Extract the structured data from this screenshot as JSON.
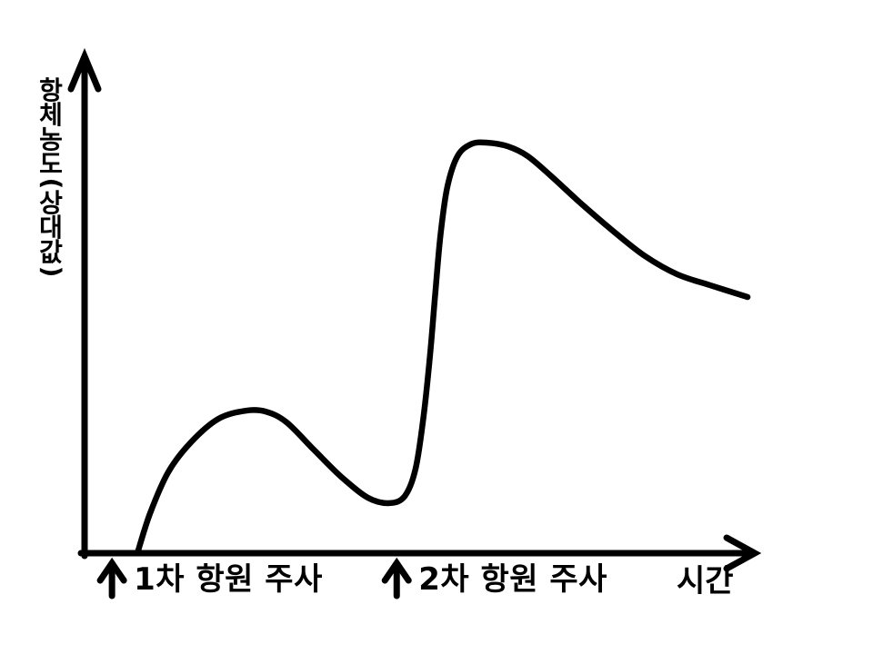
{
  "page": {
    "background": "#ffffff",
    "ink": "#000000"
  },
  "chart_data": {
    "type": "line",
    "ylabel": "항체농도(상대값)",
    "xlabel": "시간",
    "grid": false,
    "legend": "none",
    "tick_labels": "none",
    "x_axis_range": [
      0,
      100
    ],
    "y_axis_range": [
      0,
      100
    ],
    "series": [
      {
        "name": "항체농도(상대값)",
        "points": [
          [
            7.9,
            0
          ],
          [
            9.8,
            9.7
          ],
          [
            12.5,
            19.7
          ],
          [
            15.9,
            27.0
          ],
          [
            20.0,
            32.7
          ],
          [
            24.1,
            34.7
          ],
          [
            27.1,
            34.5
          ],
          [
            30.2,
            31.9
          ],
          [
            34.3,
            25.2
          ],
          [
            38.4,
            18.6
          ],
          [
            42.4,
            13.5
          ],
          [
            45.6,
            12.2
          ],
          [
            47.9,
            13.9
          ],
          [
            49.5,
            20.4
          ],
          [
            50.7,
            33.0
          ],
          [
            51.7,
            48.5
          ],
          [
            52.5,
            63.9
          ],
          [
            53.3,
            78.3
          ],
          [
            54.3,
            89.4
          ],
          [
            55.8,
            96.7
          ],
          [
            57.8,
            99.6
          ],
          [
            60.1,
            100.0
          ],
          [
            63.3,
            99.1
          ],
          [
            66.3,
            96.7
          ],
          [
            69.7,
            92.0
          ],
          [
            74.4,
            85.0
          ],
          [
            79.2,
            78.3
          ],
          [
            83.9,
            72.3
          ],
          [
            88.7,
            67.9
          ],
          [
            93.5,
            65.3
          ],
          [
            99.2,
            62.4
          ]
        ]
      }
    ],
    "x_axis_annotations": [
      {
        "marker": "up-arrow",
        "label": "1차 항원 주사",
        "x": 4.1
      },
      {
        "marker": "up-arrow",
        "label": "2차 항원 주사",
        "x": 46.7
      }
    ]
  }
}
